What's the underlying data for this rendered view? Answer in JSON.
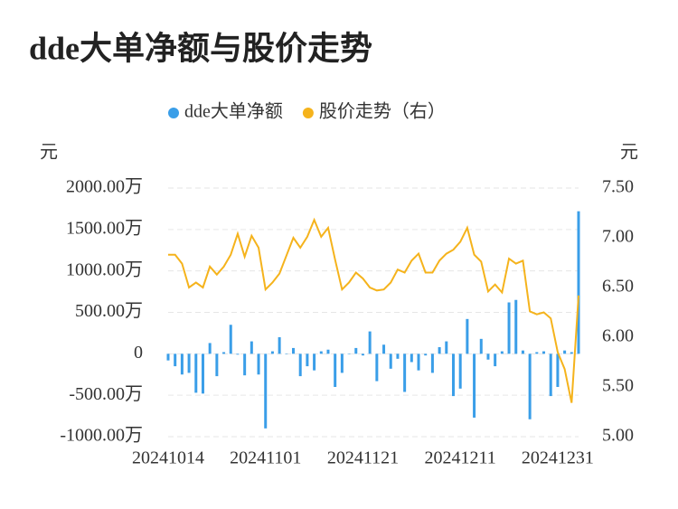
{
  "chart_data": {
    "type": "bar-line",
    "title": "dde大单净额与股价走势",
    "y_label": "元",
    "y2_label": "元",
    "categories": [
      "20241014",
      null,
      null,
      null,
      null,
      null,
      null,
      null,
      null,
      null,
      null,
      null,
      null,
      null,
      "20241101",
      null,
      null,
      null,
      null,
      null,
      null,
      null,
      null,
      null,
      null,
      null,
      null,
      null,
      "20241121",
      null,
      null,
      null,
      null,
      null,
      null,
      null,
      null,
      null,
      null,
      null,
      null,
      null,
      "20241211",
      null,
      null,
      null,
      null,
      null,
      null,
      null,
      null,
      null,
      null,
      null,
      null,
      null,
      "20241231",
      null,
      null,
      null
    ],
    "series": [
      {
        "name": "dde大单净额",
        "type": "bar",
        "color": "#3a9ee8",
        "values": [
          -80,
          -150,
          -250,
          -230,
          -470,
          -480,
          130,
          -270,
          20,
          350,
          -10,
          -260,
          150,
          -250,
          -900,
          30,
          200,
          0,
          70,
          -270,
          -150,
          -200,
          30,
          50,
          -400,
          -230,
          0,
          70,
          -20,
          270,
          -330,
          110,
          -180,
          -60,
          -460,
          -100,
          -200,
          -20,
          -230,
          80,
          150,
          -510,
          -420,
          420,
          -770,
          180,
          -70,
          -150,
          30,
          620,
          650,
          40,
          -790,
          20,
          30,
          -510,
          -400,
          40,
          20,
          1720
        ]
      },
      {
        "name": "股价走势（右）",
        "type": "line",
        "axis": "y2",
        "color": "#f5b31c",
        "values": [
          6.83,
          6.83,
          6.74,
          6.5,
          6.55,
          6.5,
          6.71,
          6.63,
          6.71,
          6.83,
          7.04,
          6.81,
          7.02,
          6.9,
          6.48,
          6.55,
          6.64,
          6.82,
          7.0,
          6.9,
          7.01,
          7.18,
          7.01,
          7.1,
          6.78,
          6.48,
          6.55,
          6.65,
          6.59,
          6.5,
          6.47,
          6.48,
          6.55,
          6.68,
          6.65,
          6.77,
          6.84,
          6.65,
          6.65,
          6.77,
          6.84,
          6.88,
          6.96,
          7.1,
          6.83,
          6.76,
          6.46,
          6.53,
          6.45,
          6.79,
          6.74,
          6.77,
          6.26,
          6.23,
          6.25,
          6.19,
          5.85,
          5.68,
          5.34,
          6.42
        ]
      }
    ],
    "ylim": [
      -1000,
      2000
    ],
    "yticks": [
      {
        "value": -1000,
        "label": "-1000.00万"
      },
      {
        "value": -500,
        "label": "-500.00万"
      },
      0,
      {
        "value": 500,
        "label": "500.00万"
      },
      {
        "value": 1000,
        "label": "1000.00万"
      },
      {
        "value": 1500,
        "label": "1500.00万"
      },
      {
        "value": 2000,
        "label": "2000.00万"
      }
    ],
    "y2lim": [
      5.0,
      7.5
    ],
    "y2ticks": [
      {
        "value": 5.0,
        "label": "5.00"
      },
      {
        "value": 5.5,
        "label": "5.50"
      },
      {
        "value": 6.0,
        "label": "6.00"
      },
      {
        "value": 6.5,
        "label": "6.50"
      },
      {
        "value": 7.0,
        "label": "7.00"
      },
      {
        "value": 7.5,
        "label": "7.50"
      }
    ],
    "grid": true,
    "legend": "top"
  }
}
